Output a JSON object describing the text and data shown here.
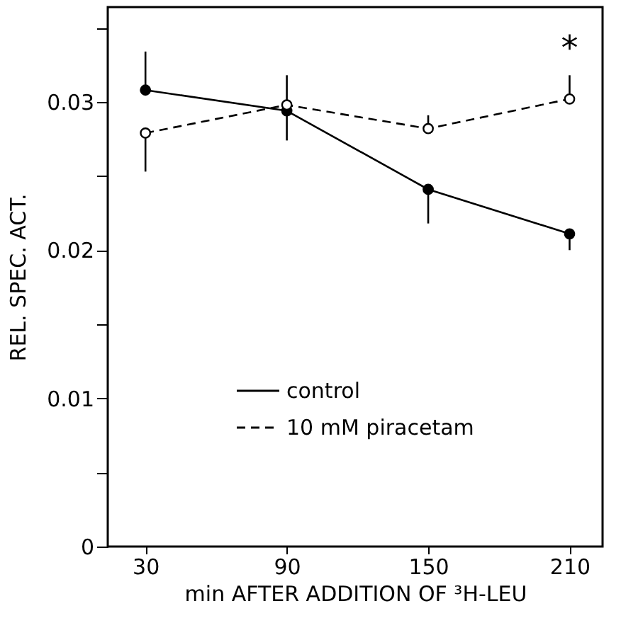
{
  "chart_data": {
    "type": "line",
    "xlabel": "min AFTER ADDITION OF ³H-LEU",
    "ylabel": "REL. SPEC. ACT.",
    "x": [
      30,
      90,
      150,
      210
    ],
    "series": [
      {
        "name": "control",
        "color": "#000000",
        "values": [
          0.0308,
          0.0294,
          0.0241,
          0.0211
        ],
        "errors": [
          [
            0.0308,
            0.0334
          ],
          [
            0.0274,
            0.0294
          ],
          [
            0.0218,
            0.0241
          ],
          [
            0.02,
            0.0211
          ]
        ],
        "marker": "circle",
        "line_style": "solid"
      },
      {
        "name": "10 mM piracetam",
        "color": "#000000",
        "values": [
          0.0279,
          0.0298,
          0.0282,
          0.0302
        ],
        "errors": [
          [
            0.0253,
            0.0279
          ],
          [
            0.0298,
            0.0318
          ],
          [
            0.0282,
            0.0291
          ],
          [
            0.0302,
            0.0318
          ]
        ],
        "marker": "circle",
        "line_style": "dashed"
      }
    ],
    "annotations": [
      "*"
    ],
    "xlim": [
      14,
      224
    ],
    "xticks": [
      30,
      90,
      150,
      210
    ],
    "ylim": [
      0,
      0.0364
    ],
    "yticks": [
      0,
      {
        "value": 0.005,
        "label": null
      },
      0.01,
      {
        "value": 0.015,
        "label": null
      },
      0.02,
      {
        "value": 0.025,
        "label": null
      },
      0.03,
      {
        "value": 0.035,
        "label": null
      }
    ],
    "grid": false,
    "legend": "bottom"
  }
}
